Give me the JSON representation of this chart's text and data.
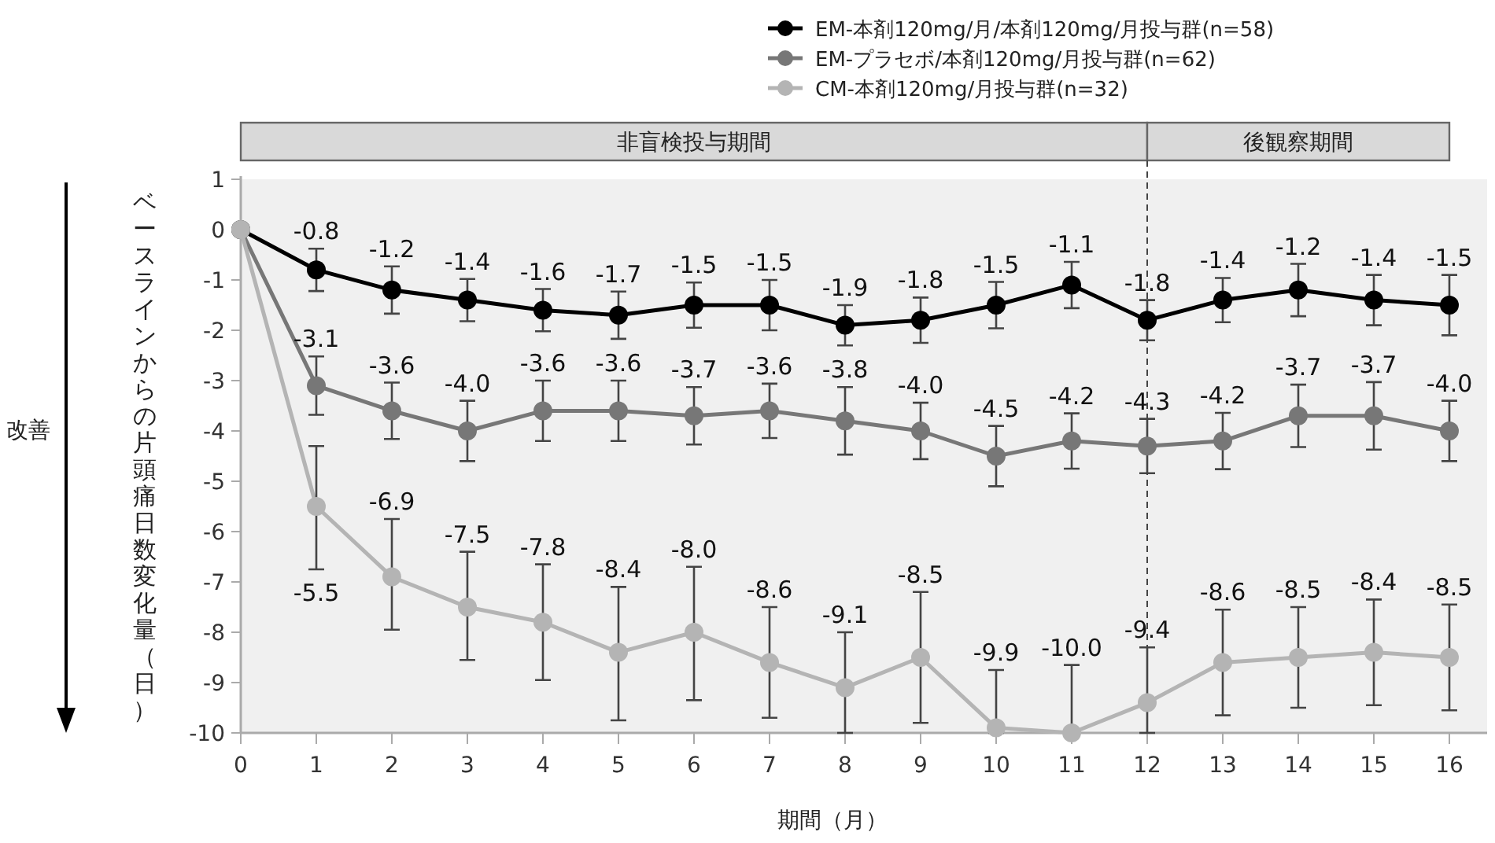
{
  "chart_data": {
    "type": "line",
    "xlabel": "期間（月）",
    "ylabel": "ベースラインからの片頭痛日数変化量（日）",
    "x": [
      0,
      1,
      2,
      3,
      4,
      5,
      6,
      7,
      8,
      9,
      10,
      11,
      12,
      13,
      14,
      15,
      16
    ],
    "xlim": [
      0,
      16.5
    ],
    "xticks": [
      0,
      1,
      2,
      3,
      4,
      5,
      6,
      7,
      8,
      9,
      10,
      11,
      12,
      13,
      14,
      15,
      16
    ],
    "ylim": [
      -10,
      1
    ],
    "yticks": [
      -10,
      -9,
      -8,
      -7,
      -6,
      -5,
      -4,
      -3,
      -2,
      -1,
      0,
      1
    ],
    "grid": false,
    "legend": "top",
    "marker": "circle",
    "line_style": "solid",
    "series": [
      {
        "name": "EM-本剤120mg/月/本剤120mg/月投与群(n=58)",
        "color": "#000000",
        "values": [
          0,
          -0.8,
          -1.2,
          -1.4,
          -1.6,
          -1.7,
          -1.5,
          -1.5,
          -1.9,
          -1.8,
          -1.5,
          -1.1,
          -1.8,
          -1.4,
          -1.2,
          -1.4,
          -1.5
        ],
        "errors": [
          null,
          0.42,
          0.47,
          0.42,
          0.42,
          0.47,
          0.45,
          0.5,
          0.4,
          0.45,
          0.46,
          0.46,
          0.4,
          0.44,
          0.52,
          0.5,
          0.6
        ],
        "value_labels": [
          null,
          "-0.8",
          "-1.2",
          "-1.4",
          "-1.6",
          "-1.7",
          "-1.5",
          "-1.5",
          "-1.9",
          "-1.8",
          "-1.5",
          "-1.1",
          "-1.8",
          "-1.4",
          "-1.2",
          "-1.4",
          "-1.5"
        ]
      },
      {
        "name": "EM-プラセボ/本剤120mg/月投与群(n=62)",
        "color": "#777777",
        "values": [
          0,
          -3.1,
          -3.6,
          -4.0,
          -3.6,
          -3.6,
          -3.7,
          -3.6,
          -3.8,
          -4.0,
          -4.5,
          -4.2,
          -4.3,
          -4.2,
          -3.7,
          -3.7,
          -4.0
        ],
        "errors": [
          null,
          0.58,
          0.56,
          0.6,
          0.6,
          0.6,
          0.57,
          0.54,
          0.67,
          0.56,
          0.6,
          0.55,
          0.54,
          0.56,
          0.62,
          0.67,
          0.6
        ],
        "value_labels": [
          null,
          "-3.1",
          "-3.6",
          "-4.0",
          "-3.6",
          "-3.6",
          "-3.7",
          "-3.6",
          "-3.8",
          "-4.0",
          "-4.5",
          "-4.2",
          "-4.3",
          "-4.2",
          "-3.7",
          "-3.7",
          "-4.0"
        ]
      },
      {
        "name": "CM-本剤120mg/月投与群(n=32)",
        "color": "#b4b4b4",
        "values": [
          0,
          -5.5,
          -6.9,
          -7.5,
          -7.8,
          -8.4,
          -8.0,
          -8.6,
          -9.1,
          -8.5,
          -9.9,
          -10.0,
          -9.4,
          -8.6,
          -8.5,
          -8.4,
          -8.5
        ],
        "errors": [
          null,
          [
            -6.75,
            -4.3
          ],
          [
            -7.95,
            -5.75
          ],
          [
            -8.55,
            -6.4
          ],
          [
            -8.95,
            -6.65
          ],
          [
            -9.75,
            -7.1
          ],
          [
            -9.35,
            -6.7
          ],
          [
            -9.7,
            -7.5
          ],
          [
            -10,
            -8
          ],
          [
            -9.8,
            -7.2
          ],
          [
            -10,
            -8.75
          ],
          [
            -10,
            -8.65
          ],
          [
            -10,
            -8.3
          ],
          [
            -9.65,
            -7.55
          ],
          [
            -9.5,
            -7.5
          ],
          [
            -9.45,
            -7.35
          ],
          [
            -9.55,
            -7.45
          ]
        ],
        "value_labels": [
          null,
          "-5.5",
          "-6.9",
          "-7.5",
          "-7.8",
          "-8.4",
          "-8.0",
          "-8.6",
          "-9.1",
          "-8.5",
          "-9.9",
          "-10.0",
          "-9.4",
          "-8.6",
          "-8.5",
          "-8.4",
          "-8.5"
        ]
      }
    ],
    "ref_lines": [
      {
        "axis": "x",
        "value": 12,
        "color": "#444444",
        "line_style": "dashed"
      }
    ],
    "annotations": [
      "非盲検投与期間",
      "後観察期間",
      "改善"
    ]
  }
}
